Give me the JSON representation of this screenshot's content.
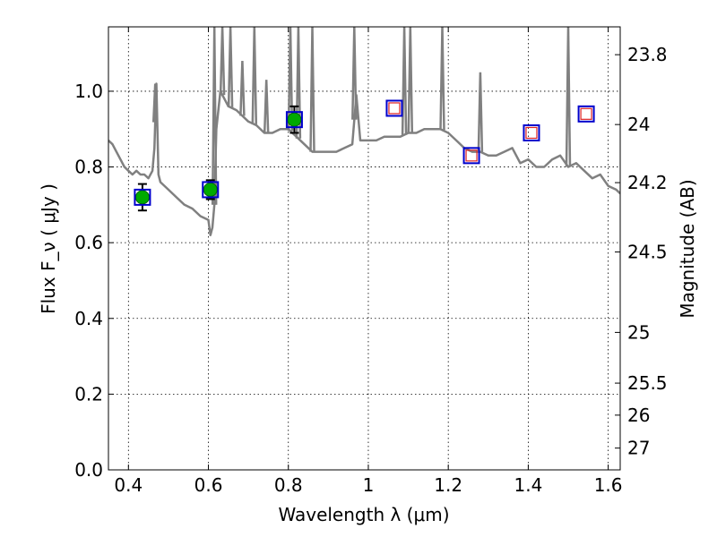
{
  "chart_data": {
    "type": "scatter",
    "title": "",
    "xlabel": "Wavelength  λ (μm)",
    "ylabel": "Flux  F_ν ( μJy )",
    "y2label": "Magnitude (AB)",
    "xlim": [
      0.35,
      1.63
    ],
    "ylim": [
      0.0,
      1.17
    ],
    "grid": true,
    "x_ticks": [
      0.4,
      0.6,
      0.8,
      1.0,
      1.2,
      1.4,
      1.6
    ],
    "x_tick_labels": [
      "0.4",
      "0.6",
      "0.8",
      "1",
      "1.2",
      "1.4",
      "1.6"
    ],
    "y_ticks": [
      0.0,
      0.2,
      0.4,
      0.6,
      0.8,
      1.0
    ],
    "y_tick_labels": [
      "0.0",
      "0.2",
      "0.4",
      "0.6",
      "0.8",
      "1.0"
    ],
    "y2_tick_labels": [
      "23.8",
      "24",
      "24.2",
      "24.5",
      "25",
      "25.5",
      "26",
      "27"
    ],
    "y2_tick_values": [
      23.8,
      24.0,
      24.2,
      24.5,
      25.0,
      25.5,
      26.0,
      27.0
    ],
    "series": [
      {
        "kind": "line",
        "color": "#808080",
        "x": [
          0.35,
          0.36,
          0.37,
          0.38,
          0.39,
          0.4,
          0.41,
          0.42,
          0.43,
          0.44,
          0.45,
          0.46,
          0.465,
          0.47,
          0.475,
          0.48,
          0.5,
          0.52,
          0.54,
          0.56,
          0.58,
          0.6,
          0.605,
          0.61,
          0.615,
          0.62,
          0.63,
          0.65,
          0.67,
          0.7,
          0.72,
          0.74,
          0.76,
          0.78,
          0.8,
          0.82,
          0.84,
          0.86,
          0.88,
          0.9,
          0.92,
          0.94,
          0.96,
          0.97,
          0.98,
          1.0,
          1.02,
          1.04,
          1.06,
          1.08,
          1.1,
          1.12,
          1.14,
          1.16,
          1.18,
          1.2,
          1.22,
          1.24,
          1.26,
          1.28,
          1.3,
          1.32,
          1.34,
          1.36,
          1.38,
          1.4,
          1.42,
          1.44,
          1.46,
          1.48,
          1.5,
          1.52,
          1.54,
          1.56,
          1.58,
          1.6,
          1.62,
          1.63
        ],
        "y": [
          0.87,
          0.86,
          0.84,
          0.82,
          0.8,
          0.79,
          0.78,
          0.79,
          0.78,
          0.78,
          0.77,
          0.79,
          0.85,
          1.02,
          0.78,
          0.76,
          0.74,
          0.72,
          0.7,
          0.69,
          0.67,
          0.66,
          0.62,
          0.64,
          0.7,
          0.9,
          1.0,
          0.96,
          0.95,
          0.92,
          0.91,
          0.89,
          0.89,
          0.9,
          0.9,
          0.88,
          0.86,
          0.84,
          0.84,
          0.84,
          0.84,
          0.85,
          0.86,
          0.99,
          0.87,
          0.87,
          0.87,
          0.88,
          0.88,
          0.88,
          0.89,
          0.89,
          0.9,
          0.9,
          0.9,
          0.89,
          0.87,
          0.85,
          0.84,
          0.84,
          0.83,
          0.83,
          0.84,
          0.85,
          0.81,
          0.82,
          0.8,
          0.8,
          0.82,
          0.83,
          0.8,
          0.81,
          0.79,
          0.77,
          0.78,
          0.75,
          0.74,
          0.73
        ],
        "spikes": [
          {
            "x": 0.467,
            "y": 1.02
          },
          {
            "x": 0.615,
            "y": 1.17
          },
          {
            "x": 0.635,
            "y": 1.17
          },
          {
            "x": 0.655,
            "y": 1.17
          },
          {
            "x": 0.685,
            "y": 1.08
          },
          {
            "x": 0.715,
            "y": 1.17
          },
          {
            "x": 0.745,
            "y": 1.03
          },
          {
            "x": 0.805,
            "y": 1.17
          },
          {
            "x": 0.825,
            "y": 1.17
          },
          {
            "x": 0.86,
            "y": 1.17
          },
          {
            "x": 0.965,
            "y": 1.17
          },
          {
            "x": 1.09,
            "y": 1.17
          },
          {
            "x": 1.105,
            "y": 1.17
          },
          {
            "x": 1.185,
            "y": 1.17
          },
          {
            "x": 1.28,
            "y": 1.05
          },
          {
            "x": 1.5,
            "y": 1.17
          }
        ]
      },
      {
        "kind": "points",
        "marker": "circle",
        "color": "#00aa00",
        "x": [
          0.435,
          0.605,
          0.815
        ],
        "y": [
          0.72,
          0.74,
          0.925
        ],
        "yerr": [
          0.035,
          0.025,
          0.035
        ]
      },
      {
        "kind": "points",
        "marker": "square-outline",
        "color": "#0000cc",
        "x": [
          0.435,
          0.605,
          0.815,
          1.065,
          1.258,
          1.408,
          1.545
        ],
        "y": [
          0.72,
          0.74,
          0.925,
          0.955,
          0.83,
          0.89,
          0.94
        ]
      },
      {
        "kind": "points",
        "marker": "small-square-outline",
        "color": "#dd2222",
        "x": [
          1.065,
          1.258,
          1.408,
          1.545
        ],
        "y": [
          0.955,
          0.83,
          0.89,
          0.94
        ]
      }
    ]
  }
}
